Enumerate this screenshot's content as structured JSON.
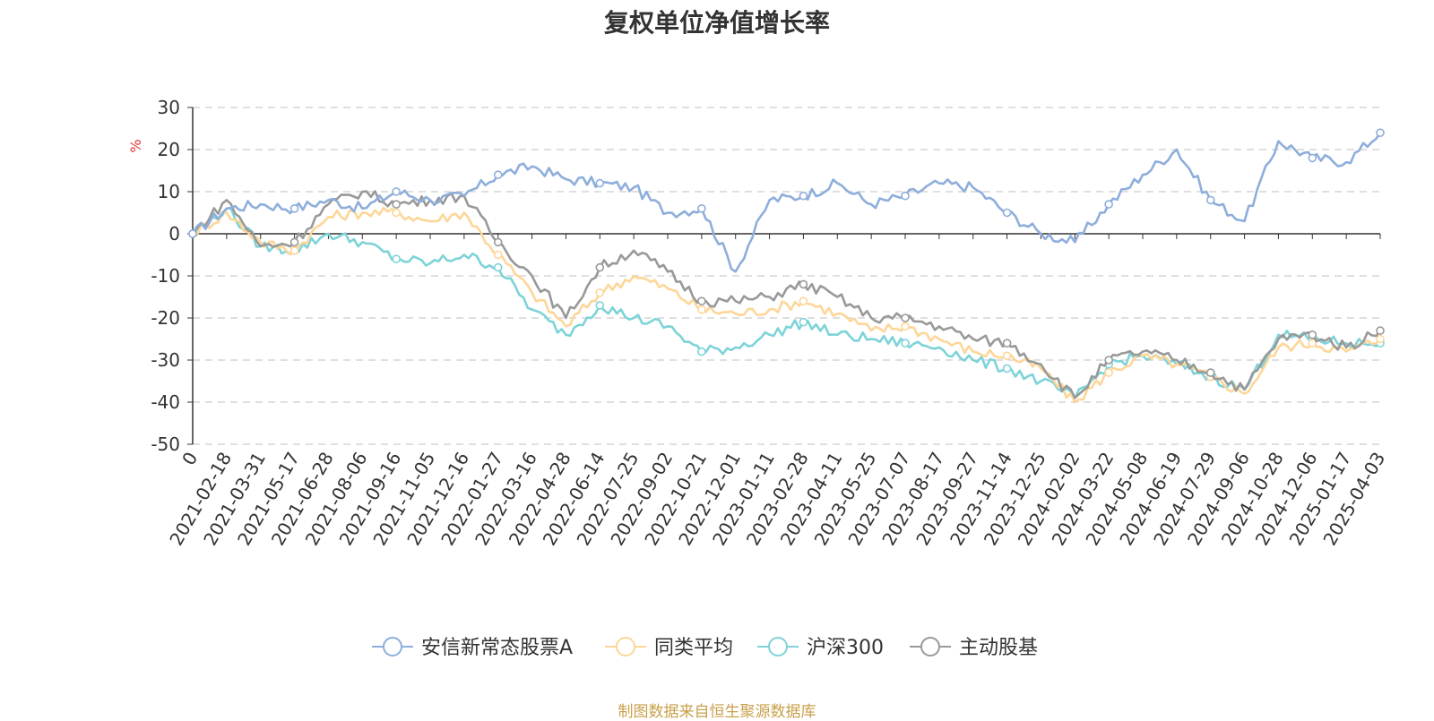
{
  "chart_data": {
    "type": "line",
    "title": "复权单位净值增长率",
    "ylabel": "%",
    "xlabel": "",
    "ylim": [
      -50,
      30
    ],
    "yticks": [
      30,
      20,
      10,
      0,
      -10,
      -20,
      -30,
      -40,
      -50
    ],
    "grid": true,
    "legend_position": "bottom-center",
    "categories": [
      "0",
      "2021-02-18",
      "2021-03-31",
      "2021-05-17",
      "2021-06-28",
      "2021-08-06",
      "2021-09-16",
      "2021-11-05",
      "2021-12-16",
      "2022-01-27",
      "2022-03-16",
      "2022-04-28",
      "2022-06-14",
      "2022-07-25",
      "2022-09-02",
      "2022-10-21",
      "2022-12-01",
      "2023-01-11",
      "2023-02-28",
      "2023-04-11",
      "2023-05-25",
      "2023-07-07",
      "2023-08-17",
      "2023-09-27",
      "2023-11-14",
      "2023-12-25",
      "2024-02-02",
      "2024-03-22",
      "2024-05-08",
      "2024-06-19",
      "2024-07-29",
      "2024-09-06",
      "2024-10-28",
      "2024-12-06",
      "2025-01-17",
      "2025-04-03"
    ],
    "series": [
      {
        "name": "安信新常态股票A",
        "color": "#8eaedb",
        "values": [
          0,
          6,
          7,
          6,
          8,
          6,
          10,
          8,
          9,
          14,
          16,
          13,
          12,
          11,
          5,
          6,
          -9,
          8,
          9,
          12,
          7,
          9,
          12,
          11,
          5,
          0,
          -2,
          7,
          14,
          20,
          8,
          3,
          22,
          18,
          17,
          24
        ]
      },
      {
        "name": "同类平均",
        "color": "#fdd698",
        "values": [
          0,
          5,
          -2,
          -4,
          4,
          5,
          5,
          3,
          5,
          -5,
          -14,
          -22,
          -14,
          -10,
          -13,
          -18,
          -19,
          -18,
          -16,
          -19,
          -23,
          -22,
          -25,
          -28,
          -29,
          -32,
          -40,
          -33,
          -29,
          -31,
          -34,
          -38,
          -27,
          -26,
          -28,
          -25
        ]
      },
      {
        "name": "沪深300",
        "color": "#7dd3d8",
        "values": [
          0,
          6,
          -3,
          -4,
          0,
          -2,
          -6,
          -7,
          -5,
          -8,
          -18,
          -24,
          -17,
          -20,
          -22,
          -28,
          -27,
          -24,
          -21,
          -24,
          -25,
          -26,
          -27,
          -30,
          -32,
          -35,
          -39,
          -31,
          -29,
          -31,
          -34,
          -37,
          -24,
          -25,
          -26,
          -26
        ]
      },
      {
        "name": "主动股基",
        "color": "#999999",
        "values": [
          0,
          8,
          -3,
          -2,
          7,
          10,
          7,
          8,
          9,
          -2,
          -10,
          -20,
          -8,
          -4,
          -9,
          -16,
          -16,
          -15,
          -12,
          -15,
          -20,
          -20,
          -22,
          -25,
          -26,
          -31,
          -39,
          -30,
          -28,
          -30,
          -33,
          -37,
          -25,
          -24,
          -27,
          -23
        ]
      }
    ]
  },
  "source_note": "制图数据来自恒生聚源数据库"
}
